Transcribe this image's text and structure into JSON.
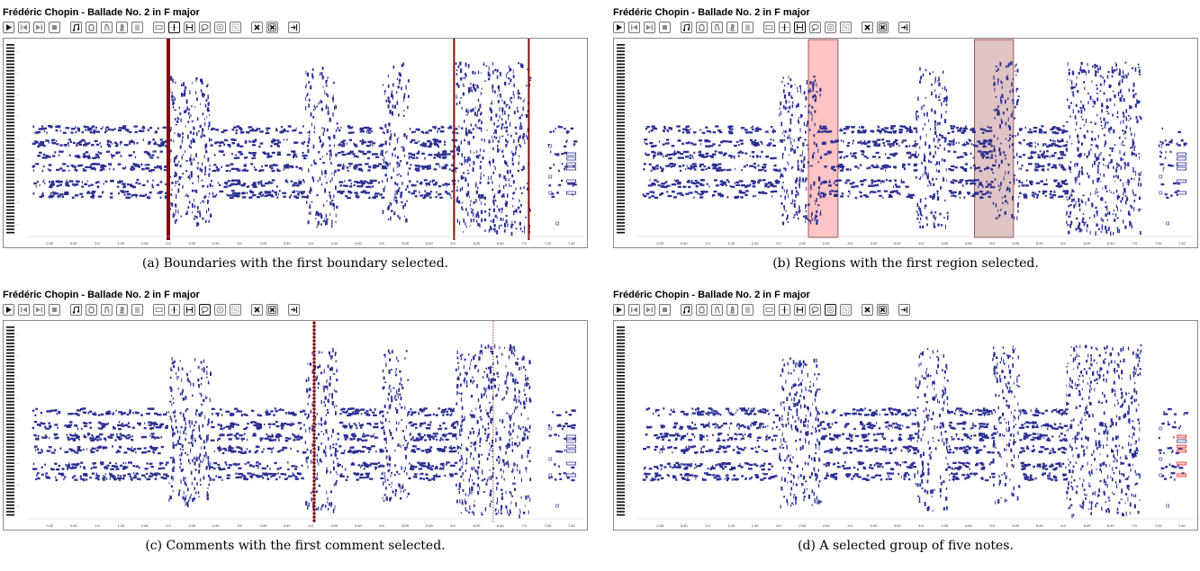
{
  "panels": [
    {
      "id": "a",
      "title": "Frédéric Chopin - Ballade No. 2 in F major",
      "caption": "(a) Boundaries with the first boundary selected.",
      "active_mode": "boundaries",
      "x_ticks": [
        "0:20",
        "0:40",
        "1:0",
        "1:20",
        "1:40",
        "2:0",
        "2:20",
        "2:40",
        "3:0",
        "3:20",
        "3:40",
        "4:0",
        "4:20",
        "4:40",
        "5:0",
        "5:20",
        "5:40",
        "6:0",
        "6:20",
        "6:40",
        "7:0",
        "7:20",
        "7:40"
      ],
      "boundaries_sec": [
        120,
        361,
        424
      ],
      "selected_boundary_index": 0
    },
    {
      "id": "b",
      "title": "Frédéric Chopin - Ballade No. 2 in F major",
      "caption": "(b) Regions with the first region selected.",
      "active_mode": "regions",
      "x_ticks": [
        "0:20",
        "0:40",
        "1:0",
        "1:20",
        "1:40",
        "2:0",
        "2:20",
        "2:40",
        "3:0",
        "3:20",
        "3:40",
        "4:0",
        "4:20",
        "4:40",
        "5:0",
        "5:20",
        "5:40",
        "6:0",
        "6:20",
        "6:40",
        "7:0",
        "7:20",
        "7:40"
      ],
      "regions_sec": [
        [
          145,
          170
        ],
        [
          285,
          318
        ]
      ],
      "region_colors": [
        "#ffc4c4",
        "#e0c4c4"
      ],
      "selected_region_index": 0
    },
    {
      "id": "c",
      "title": "Frédéric Chopin - Ballade No. 2 in F major",
      "caption": "(c) Comments with the first comment selected.",
      "active_mode": "comments",
      "x_ticks": [
        "0:20",
        "0:40",
        "1:0",
        "1:20",
        "1:40",
        "2:0",
        "2:20",
        "2:40",
        "3:0",
        "3:20",
        "3:40",
        "4:0",
        "4:20",
        "4:40",
        "5:0",
        "5:20",
        "5:40",
        "6:0",
        "6:20",
        "6:40",
        "7:0",
        "7:20",
        "7:40"
      ],
      "comments_sec": [
        243,
        394
      ],
      "selected_comment_index": 0
    },
    {
      "id": "d",
      "title": "Frédéric Chopin - Ballade No. 2 in F major",
      "caption": "(d) A selected group of five notes.",
      "active_mode": "notes",
      "x_ticks": [
        "0:20",
        "0:40",
        "1:0",
        "1:20",
        "1:40",
        "2:0",
        "2:20",
        "2:40",
        "3:0",
        "3:20",
        "3:40",
        "4:0",
        "4:20",
        "4:40",
        "5:0",
        "5:20",
        "5:40",
        "6:0",
        "6:20",
        "6:40",
        "7:0",
        "7:20",
        "7:40"
      ],
      "selected_notes_count": 5
    }
  ],
  "toolbar_buttons": [
    {
      "name": "play-button",
      "icon": "play-icon"
    },
    {
      "name": "skip-back-button",
      "icon": "skip-back-icon"
    },
    {
      "name": "skip-forward-button",
      "icon": "skip-forward-icon"
    },
    {
      "name": "stop-button",
      "icon": "stop-icon"
    },
    {
      "name": "notes-view-button",
      "icon": "music-note-icon"
    },
    {
      "name": "pedal-view-button",
      "icon": "pedal-icon"
    },
    {
      "name": "hand-view-button",
      "icon": "hand-icon"
    },
    {
      "name": "metronome-button",
      "icon": "metronome-icon"
    },
    {
      "name": "score-button",
      "icon": "score-icon"
    },
    {
      "name": "region-empty-button",
      "icon": "rectangle-icon"
    },
    {
      "name": "boundary-mode-button",
      "icon": "boundary-icon"
    },
    {
      "name": "region-mode-button",
      "icon": "region-icon"
    },
    {
      "name": "comment-mode-button",
      "icon": "speech-bubble-icon"
    },
    {
      "name": "note-group-mode-button",
      "icon": "note-group-icon"
    },
    {
      "name": "selection-mode-button",
      "icon": "selection-icon"
    },
    {
      "name": "delete-button",
      "icon": "delete-icon"
    },
    {
      "name": "delete-all-button",
      "icon": "delete-all-icon"
    },
    {
      "name": "fit-button",
      "icon": "fit-icon"
    }
  ],
  "colors": {
    "note": "#2b2f93",
    "boundary": "#7f0d0d",
    "comment": "#7f0d0d",
    "selected_note": "#e03030",
    "frame": "#8a8a8a"
  }
}
